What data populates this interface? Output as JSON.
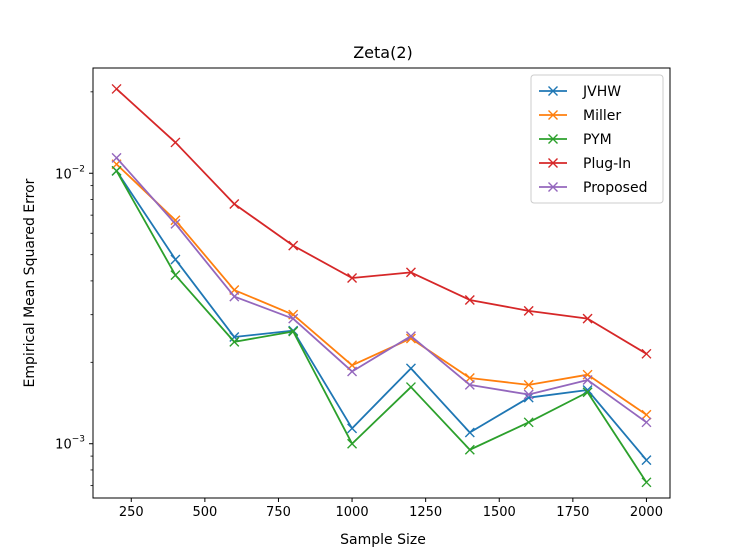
{
  "chart_data": {
    "type": "line",
    "title": "Zeta(2)",
    "xlabel": "Sample Size",
    "ylabel": "Empirical Mean Squared Error",
    "yscale": "log",
    "xlim": [
      120,
      2080
    ],
    "ylim": [
      0.00063,
      0.0245
    ],
    "x": [
      200,
      400,
      600,
      800,
      1000,
      1200,
      1400,
      1600,
      1800,
      2000
    ],
    "xticks": [
      250,
      500,
      750,
      1000,
      1250,
      1500,
      1750,
      2000
    ],
    "xtick_labels": [
      "250",
      "500",
      "750",
      "1000",
      "1250",
      "1500",
      "1750",
      "2000"
    ],
    "yticks": [
      {
        "value": 0.01,
        "base": "10",
        "exp": "−2"
      },
      {
        "value": 0.001,
        "base": "10",
        "exp": "−3"
      }
    ],
    "marker": "x",
    "legend_position": "top-right",
    "series": [
      {
        "name": "JVHW",
        "color": "#1f77b4",
        "values": [
          0.0102,
          0.0048,
          0.00248,
          0.00262,
          0.00114,
          0.0019,
          0.0011,
          0.00148,
          0.00158,
          0.00087
        ]
      },
      {
        "name": "Miller",
        "color": "#ff7f0e",
        "values": [
          0.0108,
          0.0067,
          0.0037,
          0.003,
          0.00195,
          0.00245,
          0.00175,
          0.00165,
          0.0018,
          0.00128
        ]
      },
      {
        "name": "PYM",
        "color": "#2ca02c",
        "values": [
          0.0102,
          0.0042,
          0.00238,
          0.0026,
          0.001,
          0.00162,
          0.00095,
          0.0012,
          0.00155,
          0.00072
        ]
      },
      {
        "name": "Plug-In",
        "color": "#d62728",
        "values": [
          0.0205,
          0.013,
          0.0077,
          0.0054,
          0.0041,
          0.0043,
          0.0034,
          0.0031,
          0.0029,
          0.00215
        ]
      },
      {
        "name": "Proposed",
        "color": "#9467bd",
        "values": [
          0.0114,
          0.0065,
          0.0035,
          0.0029,
          0.00185,
          0.0025,
          0.00165,
          0.00152,
          0.00172,
          0.0012
        ]
      }
    ]
  }
}
